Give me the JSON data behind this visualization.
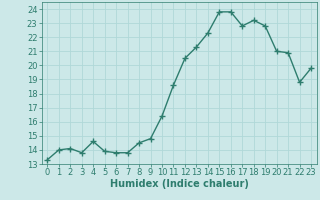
{
  "x": [
    0,
    1,
    2,
    3,
    4,
    5,
    6,
    7,
    8,
    9,
    10,
    11,
    12,
    13,
    14,
    15,
    16,
    17,
    18,
    19,
    20,
    21,
    22,
    23
  ],
  "y": [
    13.3,
    14.0,
    14.1,
    13.8,
    14.6,
    13.9,
    13.8,
    13.8,
    14.5,
    14.8,
    16.4,
    18.6,
    20.5,
    21.3,
    22.3,
    23.8,
    23.8,
    22.8,
    23.2,
    22.8,
    21.0,
    20.9,
    18.8,
    19.8
  ],
  "line_color": "#2e7d6e",
  "marker": "+",
  "marker_color": "#2e7d6e",
  "bg_color": "#cce8e8",
  "grid_color": "#b0d8d8",
  "xlabel": "Humidex (Indice chaleur)",
  "xlim": [
    -0.5,
    23.5
  ],
  "ylim": [
    13,
    24.5
  ],
  "yticks": [
    13,
    14,
    15,
    16,
    17,
    18,
    19,
    20,
    21,
    22,
    23,
    24
  ],
  "xticks": [
    0,
    1,
    2,
    3,
    4,
    5,
    6,
    7,
    8,
    9,
    10,
    11,
    12,
    13,
    14,
    15,
    16,
    17,
    18,
    19,
    20,
    21,
    22,
    23
  ],
  "line_width": 1.0,
  "marker_size": 5,
  "xlabel_fontsize": 7,
  "tick_fontsize": 6,
  "axis_color": "#2e7d6e"
}
